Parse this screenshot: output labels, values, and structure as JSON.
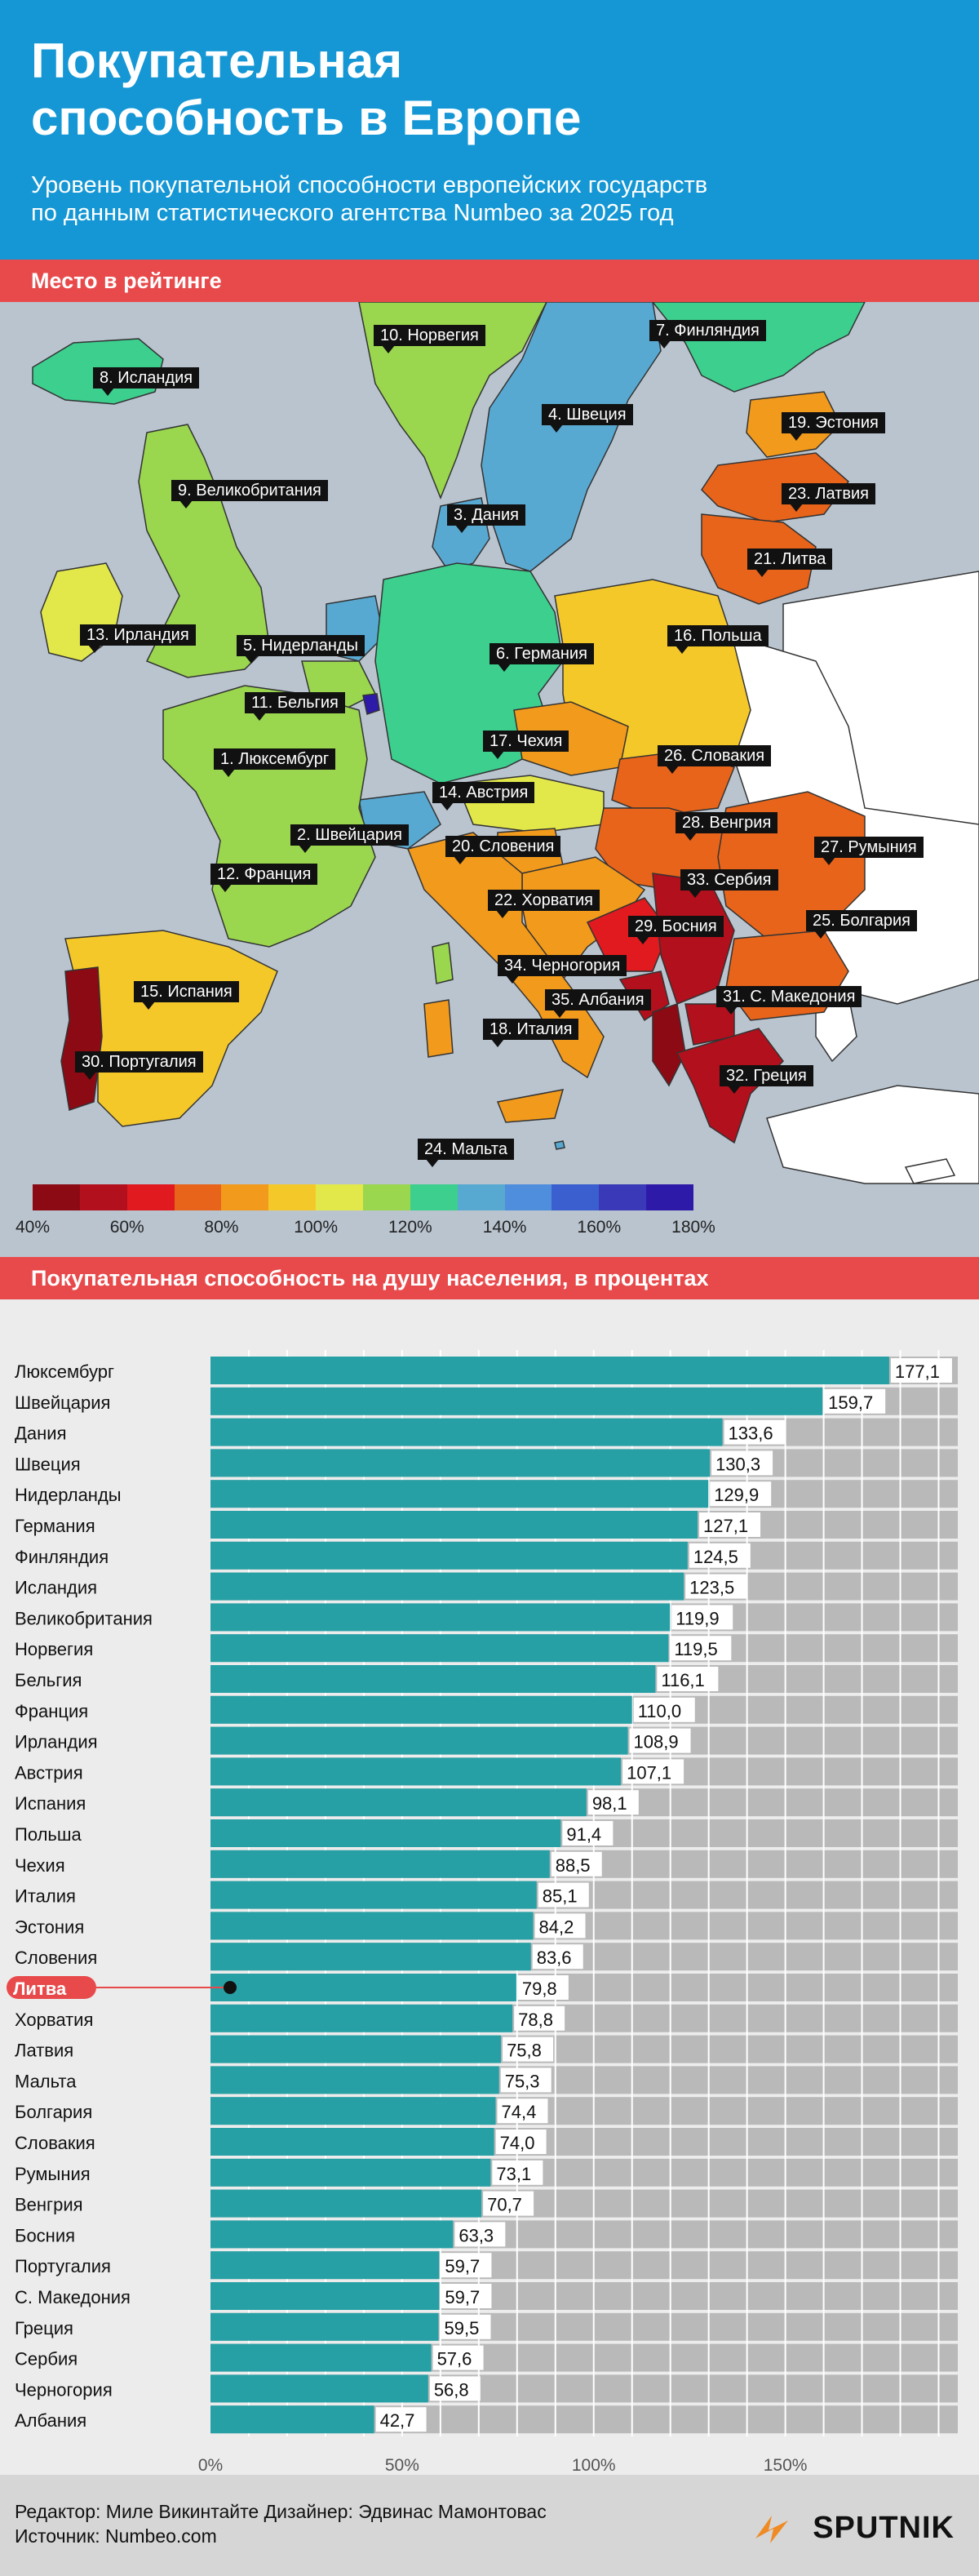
{
  "header": {
    "title_line1": "Покупательная",
    "title_line2": "способность в Европе",
    "subtitle_line1": "Уровень покупательной способности европейских  государств",
    "subtitle_line2": "по данным статистического агентства Numbeo за 2025 год"
  },
  "map_section": {
    "heading": "Место в рейтинге",
    "labels": {
      "norway": "10. Норвегия",
      "finland": "7. Финляндия",
      "iceland": "8. Исландия",
      "sweden": "4. Швеция",
      "estonia": "19. Эстония",
      "uk": "9. Великобритания",
      "latvia": "23. Латвия",
      "denmark": "3. Дания",
      "lithuania": "21. Литва",
      "ireland": "13. Ирландия",
      "netherlands": "5. Нидерланды",
      "germany": "6. Германия",
      "poland": "16. Польша",
      "belgium": "11. Бельгия",
      "czechia": "17. Чехия",
      "luxembourg": "1. Люксембург",
      "slovakia": "26. Словакия",
      "austria": "14. Австрия",
      "hungary": "28. Венгрия",
      "switzerland": "2. Швейцария",
      "slovenia": "20. Словения",
      "romania": "27. Румыния",
      "france": "12. Франция",
      "serbia": "33. Сербия",
      "croatia": "22. Хорватия",
      "bosnia": "29. Босния",
      "bulgaria": "25. Болгария",
      "montenegro": "34. Черногория",
      "spain": "15. Испания",
      "albania": "35. Албания",
      "macedonia": "31. С. Македония",
      "italy": "18. Италия",
      "portugal": "30. Португалия",
      "greece": "32. Греция",
      "malta": "24. Мальта"
    },
    "scale_colors": [
      "#8c0a14",
      "#b2101c",
      "#e01a1e",
      "#e8641a",
      "#f29a1c",
      "#f5c82a",
      "#e2e84a",
      "#9ad64e",
      "#3ccf8e",
      "#58a9d2",
      "#4f8edc",
      "#3b5fcf",
      "#3a3ab8",
      "#2e1aa8"
    ],
    "scale_ticks": [
      "40%",
      "60%",
      "80%",
      "100%",
      "120%",
      "140%",
      "160%",
      "180%"
    ]
  },
  "chart_section": {
    "heading": "Покупательная способность на душу населения, в процентах",
    "highlight_country": "Литва"
  },
  "chart_data": {
    "type": "bar",
    "orientation": "horizontal",
    "categories": [
      "Люксембург",
      "Швейцария",
      "Дания",
      "Швеция",
      "Нидерланды",
      "Германия",
      "Финляндия",
      "Исландия",
      "Великобритания",
      "Норвегия",
      "Бельгия",
      "Франция",
      "Ирландия",
      "Австрия",
      "Испания",
      "Польша",
      "Чехия",
      "Италия",
      "Эстония",
      "Словения",
      "Литва",
      "Хорватия",
      "Латвия",
      "Мальта",
      "Болгария",
      "Словакия",
      "Румыния",
      "Венгрия",
      "Босния",
      "Португалия",
      "С. Македония",
      "Греция",
      "Сербия",
      "Черногория",
      "Албания"
    ],
    "values": [
      177.1,
      159.7,
      133.6,
      130.3,
      129.9,
      127.1,
      124.5,
      123.5,
      119.9,
      119.5,
      116.1,
      110.0,
      108.9,
      107.1,
      98.1,
      91.4,
      88.5,
      85.1,
      84.2,
      83.6,
      79.8,
      78.8,
      75.8,
      75.3,
      74.4,
      74.0,
      73.1,
      70.7,
      63.3,
      59.7,
      59.7,
      59.5,
      57.6,
      56.8,
      42.7
    ],
    "value_labels": [
      "177,1",
      "159,7",
      "133,6",
      "130,3",
      "129,9",
      "127,1",
      "124,5",
      "123,5",
      "119,9",
      "119,5",
      "116,1",
      "110,0",
      "108,9",
      "107,1",
      "98,1",
      "91,4",
      "88,5",
      "85,1",
      "84,2",
      "83,6",
      "79,8",
      "78,8",
      "75,8",
      "75,3",
      "74,4",
      "74,0",
      "73,1",
      "70,7",
      "63,3",
      "59,7",
      "59,7",
      "59,5",
      "57,6",
      "56,8",
      "42,7"
    ],
    "xlim": [
      0,
      195
    ],
    "xticks": [
      0,
      50,
      100,
      150
    ],
    "xtick_labels": [
      "0%",
      "50%",
      "100%",
      "150%"
    ],
    "bar_color": "#27a0a5",
    "track_color": "#b9b9b9",
    "grid": true
  },
  "footer": {
    "credits_line1": "Редактор: Миле Викинтайте  Дизайнер: Эдвинас Мамонтовас",
    "credits_line2": "Источник: Numbeo.com",
    "logo": "SPUTNIK"
  }
}
